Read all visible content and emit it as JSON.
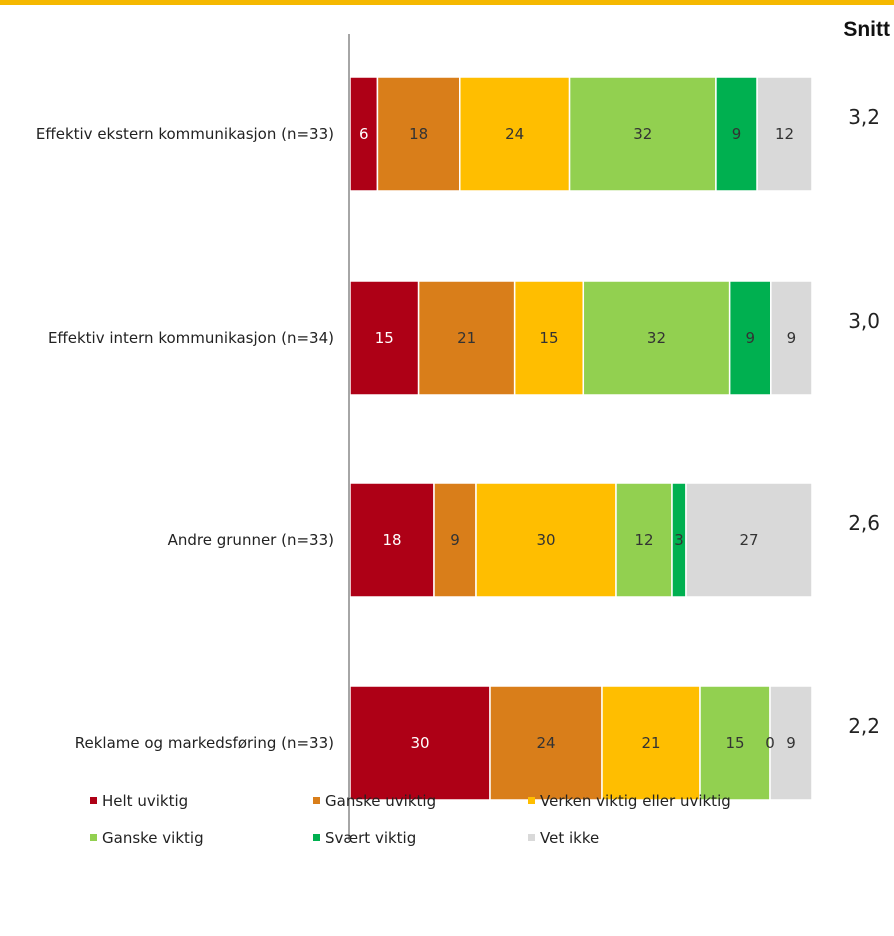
{
  "chart_data": {
    "type": "bar",
    "orientation": "horizontal",
    "stacked": true,
    "average_title": "Snitt",
    "categories": [
      "Effektiv ekstern kommunikasjon (n=33)",
      "Effektiv intern kommunikasjon (n=34)",
      "Andre grunner (n=33)",
      "Reklame og markedsføring (n=33)"
    ],
    "series": [
      {
        "name": "Helt uviktig",
        "color": "#ae0016",
        "values": [
          6,
          15,
          18,
          30
        ]
      },
      {
        "name": "Ganske uviktig",
        "color": "#d97e1a",
        "values": [
          18,
          21,
          9,
          24
        ]
      },
      {
        "name": "Verken viktig eller uviktig",
        "color": "#ffbe00",
        "values": [
          24,
          15,
          30,
          21
        ]
      },
      {
        "name": "Ganske viktig",
        "color": "#92d050",
        "values": [
          32,
          32,
          12,
          15
        ]
      },
      {
        "name": "Svært viktig",
        "color": "#00b050",
        "values": [
          9,
          9,
          3,
          0
        ]
      },
      {
        "name": "Vet ikke",
        "color": "#d9d9d9",
        "values": [
          12,
          9,
          27,
          9
        ]
      }
    ],
    "averages": [
      "3,2",
      "3,0",
      "2,6",
      "2,2"
    ],
    "legend_position": "bottom",
    "grid": false
  },
  "colors": {
    "accent_rule": "#f5b800",
    "axis": "#888888"
  }
}
